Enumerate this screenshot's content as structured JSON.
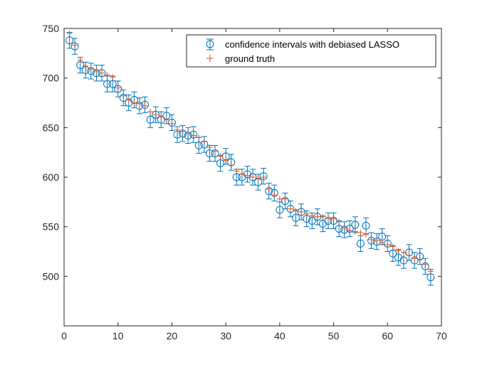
{
  "chart_data": {
    "type": "scatter",
    "xlim": [
      0,
      70
    ],
    "ylim": [
      450,
      750
    ],
    "xticks": [
      0,
      10,
      20,
      30,
      40,
      50,
      60,
      70
    ],
    "yticks": [
      500,
      550,
      600,
      650,
      700,
      750
    ],
    "grid": false,
    "legend_position": "top-right",
    "series": [
      {
        "name": "confidence intervals with debiased LASSO",
        "kind": "errorbar",
        "color": "#0072BD",
        "x": [
          1,
          2,
          3,
          4,
          5,
          6,
          7,
          8,
          9,
          10,
          11,
          12,
          13,
          14,
          15,
          16,
          17,
          18,
          19,
          20,
          21,
          22,
          23,
          24,
          25,
          26,
          27,
          28,
          29,
          30,
          31,
          32,
          33,
          34,
          35,
          36,
          37,
          38,
          39,
          40,
          41,
          42,
          43,
          44,
          45,
          46,
          47,
          48,
          49,
          50,
          51,
          52,
          53,
          54,
          55,
          56,
          57,
          58,
          59,
          60,
          61,
          62,
          63,
          64,
          65,
          66,
          67,
          68
        ],
        "y": [
          738,
          732,
          713,
          708,
          707,
          705,
          705,
          694,
          694,
          689,
          680,
          675,
          678,
          672,
          673,
          658,
          663,
          658,
          662,
          655,
          643,
          644,
          642,
          643,
          632,
          633,
          624,
          624,
          614,
          621,
          615,
          600,
          600,
          603,
          600,
          595,
          601,
          586,
          584,
          567,
          576,
          568,
          559,
          565,
          558,
          556,
          560,
          553,
          556,
          556,
          548,
          547,
          548,
          552,
          533,
          551,
          536,
          535,
          540,
          533,
          523,
          519,
          516,
          524,
          516,
          520,
          510,
          499
        ],
        "error": 8
      },
      {
        "name": "ground truth",
        "kind": "plus",
        "color": "#D95319",
        "x": [
          1,
          2,
          3,
          4,
          5,
          6,
          7,
          8,
          9,
          10,
          11,
          12,
          13,
          14,
          15,
          16,
          17,
          18,
          19,
          20,
          21,
          22,
          23,
          24,
          25,
          26,
          27,
          28,
          29,
          30,
          31,
          32,
          33,
          34,
          35,
          36,
          37,
          38,
          39,
          40,
          41,
          42,
          43,
          44,
          45,
          46,
          47,
          48,
          49,
          50,
          51,
          52,
          53,
          54,
          55,
          56,
          57,
          58,
          59,
          60,
          61,
          62,
          63,
          64,
          65,
          66,
          67,
          68
        ],
        "y": [
          745,
          733,
          718,
          712,
          709,
          707,
          705,
          703,
          701,
          690,
          682,
          678,
          675,
          674,
          672,
          666,
          663,
          661,
          658,
          654,
          648,
          646,
          644,
          642,
          640,
          636,
          630,
          626,
          621,
          617,
          612,
          606,
          603,
          602,
          600,
          599,
          600,
          588,
          582,
          578,
          578,
          568,
          566,
          565,
          563,
          561,
          560,
          560,
          558,
          558,
          555,
          549,
          546,
          545,
          544,
          542,
          537,
          536,
          534,
          532,
          530,
          526,
          524,
          521,
          518,
          517,
          512,
          505
        ]
      }
    ]
  }
}
